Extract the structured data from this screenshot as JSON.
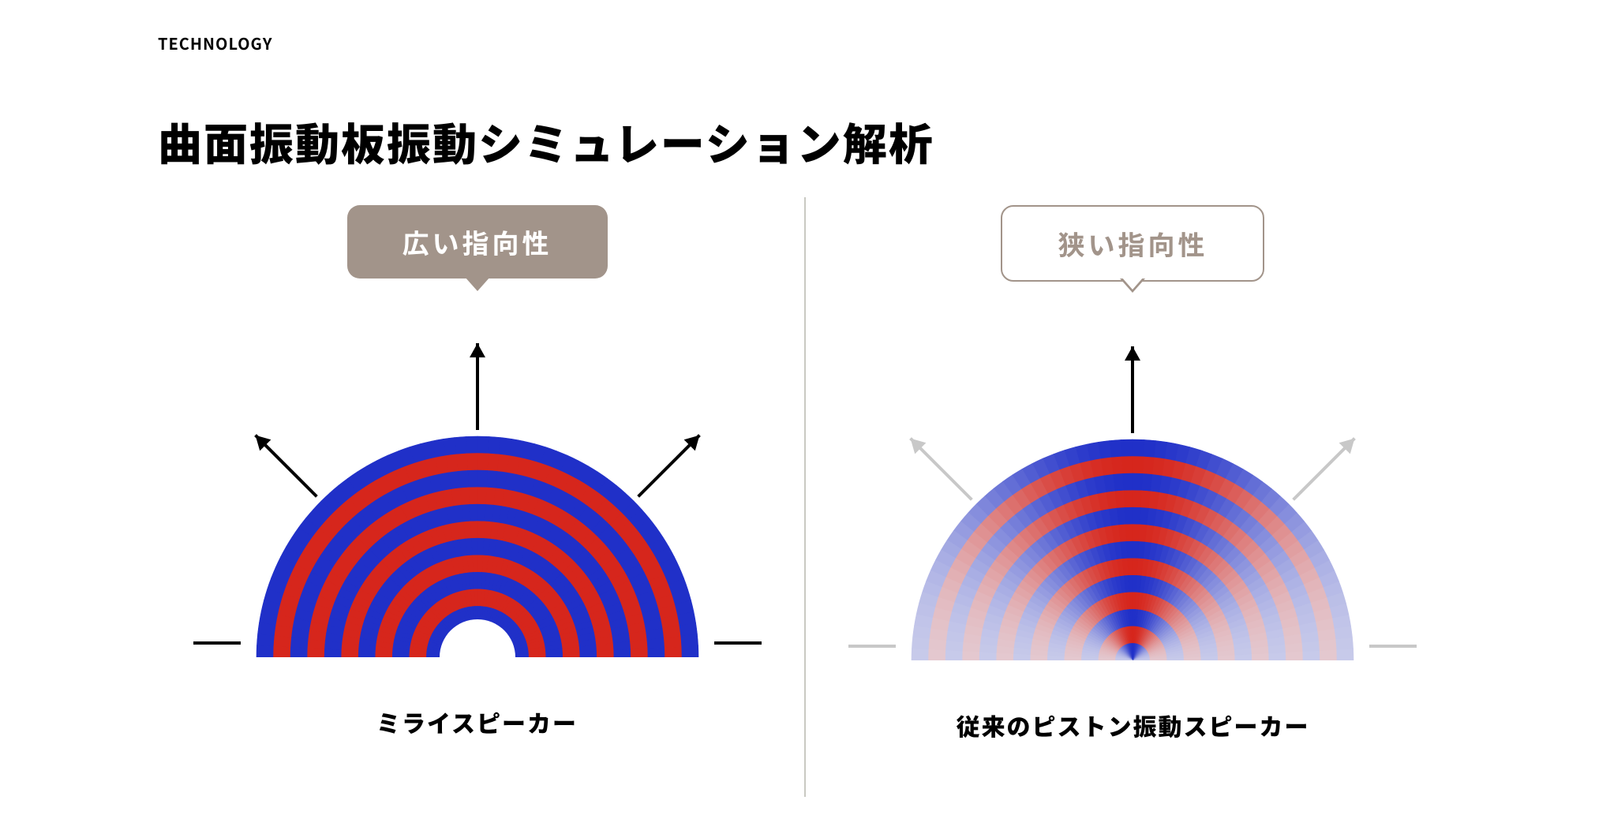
{
  "eyebrow": "TECHNOLOGY",
  "headline": "曲面振動板振動シミュレーション解析",
  "palette": {
    "background": "#ffffff",
    "text": "#000000",
    "bubble_bg": "#a2948a",
    "bubble_text": "#ffffff",
    "divider": "#c9c9c2",
    "wave_pos": "#d6261c",
    "wave_neg": "#2030c8",
    "wave_mid": "#e6e6f0",
    "arrow_strong": "#000000",
    "arrow_faded": "#c8c8c8"
  },
  "left": {
    "bubble_style": "filled",
    "bubble_text": "広い指向性",
    "caption": "ミライスピーカー",
    "sim": {
      "type": "radial-wave",
      "radius": 280,
      "inner_hole_radius": 48,
      "ring_count": 13,
      "angular_spread_deg": 180,
      "intensity_profile": "uniform",
      "arrows": [
        {
          "angle_deg": 90,
          "len": 110,
          "strength": "strong"
        },
        {
          "angle_deg": 45,
          "len": 110,
          "strength": "strong"
        },
        {
          "angle_deg": 135,
          "len": 110,
          "strength": "strong"
        },
        {
          "angle_deg": 0,
          "len": 110,
          "strength": "strong"
        },
        {
          "angle_deg": 180,
          "len": 110,
          "strength": "strong"
        }
      ]
    }
  },
  "right": {
    "bubble_style": "outline",
    "bubble_text": "狭い指向性",
    "caption": "従来のピストン振動スピーカー",
    "sim": {
      "type": "radial-wave",
      "radius": 280,
      "inner_hole_radius": 0,
      "ring_count": 13,
      "angular_spread_deg": 180,
      "intensity_profile": "narrow-lobe",
      "lobe_center_deg": 90,
      "lobe_halfwidth_deg": 35,
      "arrows": [
        {
          "angle_deg": 90,
          "len": 110,
          "strength": "strong"
        },
        {
          "angle_deg": 45,
          "len": 110,
          "strength": "faded"
        },
        {
          "angle_deg": 135,
          "len": 110,
          "strength": "faded"
        },
        {
          "angle_deg": 0,
          "len": 110,
          "strength": "faded"
        },
        {
          "angle_deg": 180,
          "len": 110,
          "strength": "faded"
        }
      ]
    }
  }
}
